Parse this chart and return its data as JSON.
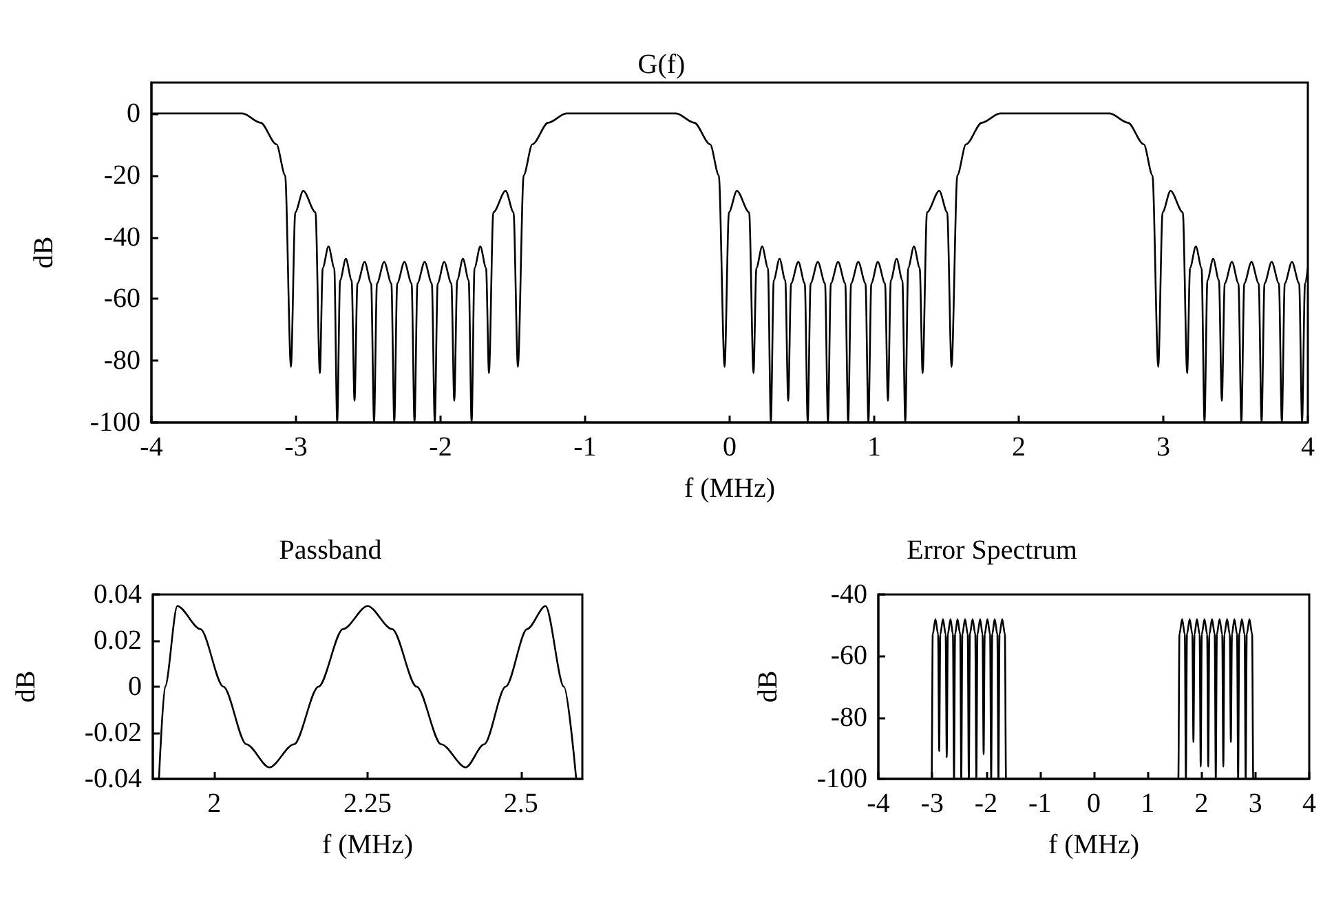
{
  "chart_data": [
    {
      "type": "line",
      "title": "G(f)",
      "xlabel": "f (MHz)",
      "ylabel": "dB",
      "xlim": [
        -4,
        4
      ],
      "ylim": [
        -100,
        10
      ],
      "xticks": [
        -4,
        -3,
        -2,
        -1,
        0,
        1,
        2,
        3,
        4
      ],
      "yticks": [
        -100,
        -80,
        -60,
        -40,
        -20,
        0
      ],
      "grid": false,
      "marker": "none",
      "line_style": "solid",
      "x": [
        -4,
        -3.37,
        -3.245,
        -3.135,
        -3.075,
        -3.035,
        -3.005,
        -2.95,
        -2.865,
        -2.835,
        -2.815,
        -2.775,
        -2.735,
        -2.715,
        -2.695,
        -2.655,
        -2.615,
        -2.595,
        -2.575,
        -2.525,
        -2.48,
        -2.46,
        -2.44,
        -2.39,
        -2.34,
        -2.32,
        -2.3,
        -2.25,
        -2.2,
        -2.18,
        -2.16,
        -2.11,
        -2.06,
        -2.04,
        -2.02,
        -1.975,
        -1.925,
        -1.905,
        -1.885,
        -1.845,
        -1.805,
        -1.785,
        -1.765,
        -1.725,
        -1.685,
        -1.665,
        -1.635,
        -1.55,
        -1.495,
        -1.465,
        -1.425,
        -1.365,
        -1.255,
        -1.13,
        -0.75,
        -0.37,
        -0.245,
        -0.135,
        -0.075,
        -0.035,
        -0.005,
        0.05,
        0.135,
        0.165,
        0.185,
        0.225,
        0.265,
        0.285,
        0.305,
        0.345,
        0.385,
        0.405,
        0.425,
        0.475,
        0.52,
        0.54,
        0.56,
        0.61,
        0.66,
        0.68,
        0.7,
        0.75,
        0.8,
        0.82,
        0.84,
        0.89,
        0.94,
        0.96,
        0.98,
        1.025,
        1.075,
        1.095,
        1.115,
        1.155,
        1.195,
        1.215,
        1.235,
        1.275,
        1.315,
        1.335,
        1.365,
        1.45,
        1.505,
        1.535,
        1.575,
        1.635,
        1.745,
        1.87,
        2.25,
        2.63,
        2.755,
        2.865,
        2.925,
        2.965,
        2.995,
        3.05,
        3.135,
        3.165,
        3.185,
        3.225,
        3.265,
        3.285,
        3.305,
        3.345,
        3.385,
        3.405,
        3.425,
        3.475,
        3.52,
        3.54,
        3.56,
        3.61,
        3.66,
        3.68,
        3.7,
        3.75,
        3.8,
        3.82,
        3.84,
        3.89,
        3.94,
        3.96,
        3.98,
        4
      ],
      "series": [
        {
          "color": "#000000",
          "values": [
            0,
            0,
            -3,
            -10,
            -20,
            -82,
            -32,
            -25,
            -32,
            -84,
            -50,
            -43,
            -50,
            -100,
            -54,
            -47,
            -54,
            -93,
            -55,
            -48,
            -55,
            -100,
            -55,
            -48,
            -55,
            -100,
            -55,
            -48,
            -55,
            -100,
            -55,
            -48,
            -55,
            -100,
            -55,
            -48,
            -55,
            -93,
            -54,
            -47,
            -54,
            -100,
            -50,
            -43,
            -50,
            -84,
            -32,
            -25,
            -32,
            -82,
            -20,
            -10,
            -3,
            0,
            0,
            0,
            -3,
            -10,
            -20,
            -82,
            -32,
            -25,
            -32,
            -84,
            -50,
            -43,
            -50,
            -100,
            -54,
            -47,
            -54,
            -93,
            -55,
            -48,
            -55,
            -100,
            -55,
            -48,
            -55,
            -100,
            -55,
            -48,
            -55,
            -100,
            -55,
            -48,
            -55,
            -100,
            -55,
            -48,
            -55,
            -93,
            -54,
            -47,
            -54,
            -100,
            -50,
            -43,
            -50,
            -84,
            -32,
            -25,
            -32,
            -82,
            -20,
            -10,
            -3,
            0,
            0,
            0,
            -3,
            -10,
            -20,
            -82,
            -32,
            -25,
            -32,
            -84,
            -50,
            -43,
            -50,
            -100,
            -54,
            -47,
            -54,
            -93,
            -55,
            -48,
            -55,
            -100,
            -55,
            -48,
            -55,
            -100,
            -55,
            -48,
            -55,
            -100,
            -55,
            -48,
            -55,
            -100,
            -55,
            -50
          ]
        }
      ]
    },
    {
      "type": "line",
      "title": "Passband",
      "xlabel": "f (MHz)",
      "ylabel": "dB",
      "xlim": [
        1.9,
        2.6
      ],
      "ylim": [
        -0.04,
        0.04
      ],
      "xticks": [
        2,
        2.25,
        2.5
      ],
      "yticks": [
        -0.04,
        -0.02,
        0,
        0.02,
        0.04
      ],
      "grid": false,
      "marker": "none",
      "line_style": "solid",
      "x": [
        1.91,
        1.92,
        1.94,
        1.9775,
        2.015,
        2.0525,
        2.09,
        2.13,
        2.17,
        2.21,
        2.25,
        2.29,
        2.33,
        2.37,
        2.41,
        2.44,
        2.475,
        2.51,
        2.54,
        2.57,
        2.59
      ],
      "series": [
        {
          "color": "#000000",
          "values": [
            -0.04,
            0,
            0.035,
            0.025,
            0,
            -0.025,
            -0.035,
            -0.025,
            0,
            0.025,
            0.035,
            0.025,
            0,
            -0.025,
            -0.035,
            -0.025,
            0,
            0.025,
            0.035,
            0,
            -0.04
          ]
        }
      ]
    },
    {
      "type": "line",
      "title": "Error Spectrum",
      "xlabel": "f (MHz)",
      "ylabel": "dB",
      "xlim": [
        -4,
        4
      ],
      "ylim": [
        -100,
        -40
      ],
      "xticks": [
        -4,
        -3,
        -2,
        -1,
        0,
        1,
        2,
        3,
        4
      ],
      "yticks": [
        -100,
        -80,
        -60,
        -40
      ],
      "grid": false,
      "marker": "none",
      "line_style": "solid",
      "x": [
        -4,
        -3.01,
        -2.99,
        -2.94,
        -2.89,
        -2.87,
        -2.85,
        -2.8,
        -2.75,
        -2.73,
        -2.71,
        -2.66,
        -2.615,
        -2.595,
        -2.575,
        -2.53,
        -2.48,
        -2.46,
        -2.44,
        -2.39,
        -2.34,
        -2.32,
        -2.3,
        -2.25,
        -2.2,
        -2.18,
        -2.16,
        -2.11,
        -2.065,
        -2.045,
        -2.025,
        -1.975,
        -1.925,
        -1.905,
        -1.885,
        -1.84,
        -1.79,
        -1.77,
        -1.75,
        -1.7,
        -1.65,
        -1.63,
        1.57,
        1.59,
        1.64,
        1.69,
        1.71,
        1.73,
        1.78,
        1.83,
        1.85,
        1.87,
        1.915,
        1.965,
        1.985,
        2.005,
        2.055,
        2.105,
        2.125,
        2.145,
        2.195,
        2.245,
        2.265,
        2.285,
        2.335,
        2.385,
        2.405,
        2.425,
        2.475,
        2.525,
        2.545,
        2.565,
        2.61,
        2.66,
        2.68,
        2.7,
        2.75,
        2.8,
        2.82,
        2.84,
        2.89,
        2.94,
        2.96,
        4
      ],
      "series": [
        {
          "color": "#000000",
          "values": [
            -100,
            -100,
            -53,
            -48,
            -53,
            -91,
            -53,
            -48,
            -53,
            -93,
            -53,
            -48,
            -53,
            -100,
            -53,
            -48,
            -53,
            -100,
            -53,
            -48,
            -53,
            -100,
            -53,
            -48,
            -53,
            -100,
            -53,
            -48,
            -53,
            -92,
            -53,
            -48,
            -53,
            -100,
            -53,
            -48,
            -53,
            -100,
            -53,
            -48,
            -53,
            -100,
            -100,
            -53,
            -48,
            -53,
            -100,
            -53,
            -48,
            -53,
            -88,
            -53,
            -48,
            -53,
            -96,
            -53,
            -48,
            -53,
            -96,
            -53,
            -48,
            -53,
            -100,
            -53,
            -48,
            -53,
            -96,
            -53,
            -48,
            -53,
            -88,
            -53,
            -48,
            -53,
            -100,
            -53,
            -48,
            -53,
            -100,
            -53,
            -48,
            -53,
            -100,
            -100
          ]
        }
      ]
    }
  ]
}
